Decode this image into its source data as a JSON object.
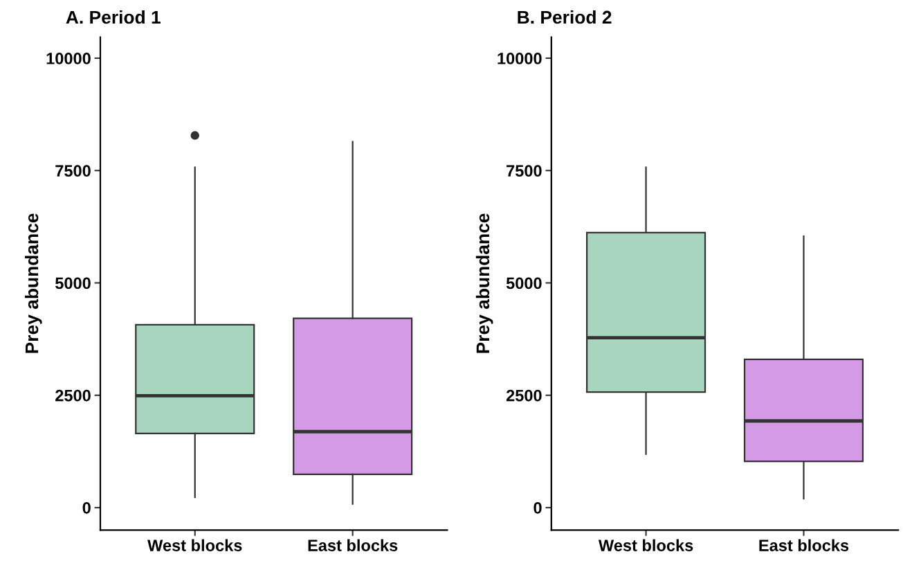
{
  "chart_data": [
    {
      "type": "box",
      "title": "A. Period 1",
      "ylabel": "Prey abundance",
      "categories": [
        "West blocks",
        "East blocks"
      ],
      "colors": [
        "#a8d5bd",
        "#d59ae6"
      ],
      "ylim": [
        -500,
        10470
      ],
      "yticks": [
        0,
        2500,
        5000,
        7500,
        10000
      ],
      "grid": false,
      "boxes": [
        {
          "low": 230,
          "q1": 1650,
          "median": 2490,
          "q3": 4070,
          "high": 7570,
          "outliers": [
            8280
          ]
        },
        {
          "low": 80,
          "q1": 740,
          "median": 1690,
          "q3": 4210,
          "high": 8140
        }
      ]
    },
    {
      "type": "box",
      "title": "B. Period 2",
      "ylabel": "Prey abundance",
      "categories": [
        "West blocks",
        "East blocks"
      ],
      "colors": [
        "#a8d5bd",
        "#d59ae6"
      ],
      "ylim": [
        -500,
        10470
      ],
      "yticks": [
        0,
        2500,
        5000,
        7500,
        10000
      ],
      "grid": false,
      "boxes": [
        {
          "low": 1190,
          "q1": 2570,
          "median": 3780,
          "q3": 6120,
          "high": 7570
        },
        {
          "low": 200,
          "q1": 1030,
          "median": 1930,
          "q3": 3300,
          "high": 6040
        }
      ]
    }
  ]
}
